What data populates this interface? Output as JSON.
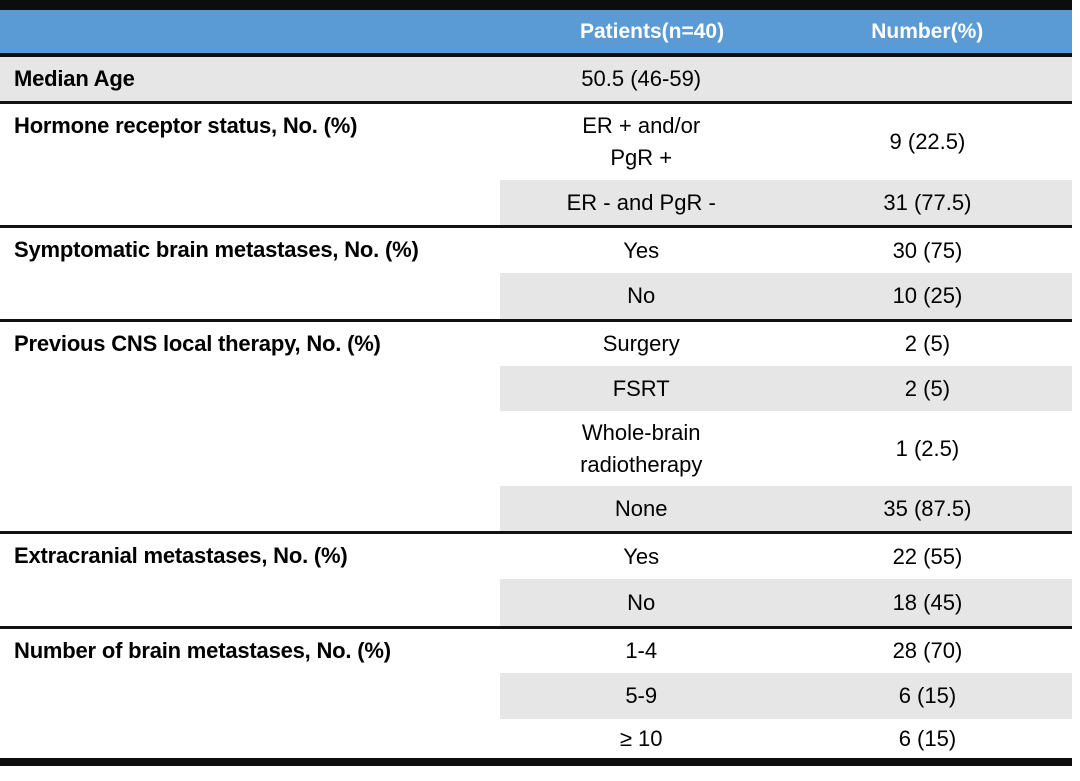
{
  "table": {
    "title_semantics": "Patient characteristics table",
    "colors": {
      "header_bg": "#5B9BD5",
      "header_text": "#FFFFFF",
      "shade_bg": "#E7E6E6",
      "border": "#0D0D0D",
      "body_text": "#000000"
    },
    "header": {
      "col1": "",
      "col2": "Patients(n=40)",
      "col3": "Number(%)"
    },
    "sections": [
      {
        "label": "Median Age",
        "full_shade": true,
        "rows": [
          {
            "value_lines": [
              "50.5 (46-59)"
            ],
            "number": "",
            "shaded": false
          }
        ]
      },
      {
        "label": "Hormone receptor status, No. (%)",
        "rows": [
          {
            "value_lines": [
              "ER + and/or",
              "PgR +"
            ],
            "number": "9 (22.5)",
            "shaded": false
          },
          {
            "value_lines": [
              "ER - and PgR -"
            ],
            "number": "31 (77.5)",
            "shaded": true
          }
        ]
      },
      {
        "label": "Symptomatic brain metastases, No. (%)",
        "rows": [
          {
            "value_lines": [
              "Yes"
            ],
            "number": "30 (75)",
            "shaded": false
          },
          {
            "value_lines": [
              "No"
            ],
            "number": "10 (25)",
            "shaded": true
          }
        ]
      },
      {
        "label": "Previous CNS local therapy, No. (%)",
        "rows": [
          {
            "value_lines": [
              "Surgery"
            ],
            "number": "2 (5)",
            "shaded": false
          },
          {
            "value_lines": [
              "FSRT"
            ],
            "number": "2 (5)",
            "shaded": true
          },
          {
            "value_lines": [
              "Whole-brain",
              "radiotherapy"
            ],
            "number": "1 (2.5)",
            "shaded": false
          },
          {
            "value_lines": [
              "None"
            ],
            "number": "35 (87.5)",
            "shaded": true
          }
        ]
      },
      {
        "label": "Extracranial metastases, No. (%)",
        "rows": [
          {
            "value_lines": [
              "Yes"
            ],
            "number": "22 (55)",
            "shaded": false
          },
          {
            "value_lines": [
              "No"
            ],
            "number": "18 (45)",
            "shaded": true
          }
        ]
      },
      {
        "label": "Number of brain metastases, No. (%)",
        "rows": [
          {
            "value_lines": [
              "1-4"
            ],
            "number": "28 (70)",
            "shaded": false
          },
          {
            "value_lines": [
              "5-9"
            ],
            "number": "6 (15)",
            "shaded": true
          },
          {
            "value_lines": [
              "≥ 10"
            ],
            "number": "6 (15)",
            "shaded": false
          }
        ]
      }
    ]
  }
}
